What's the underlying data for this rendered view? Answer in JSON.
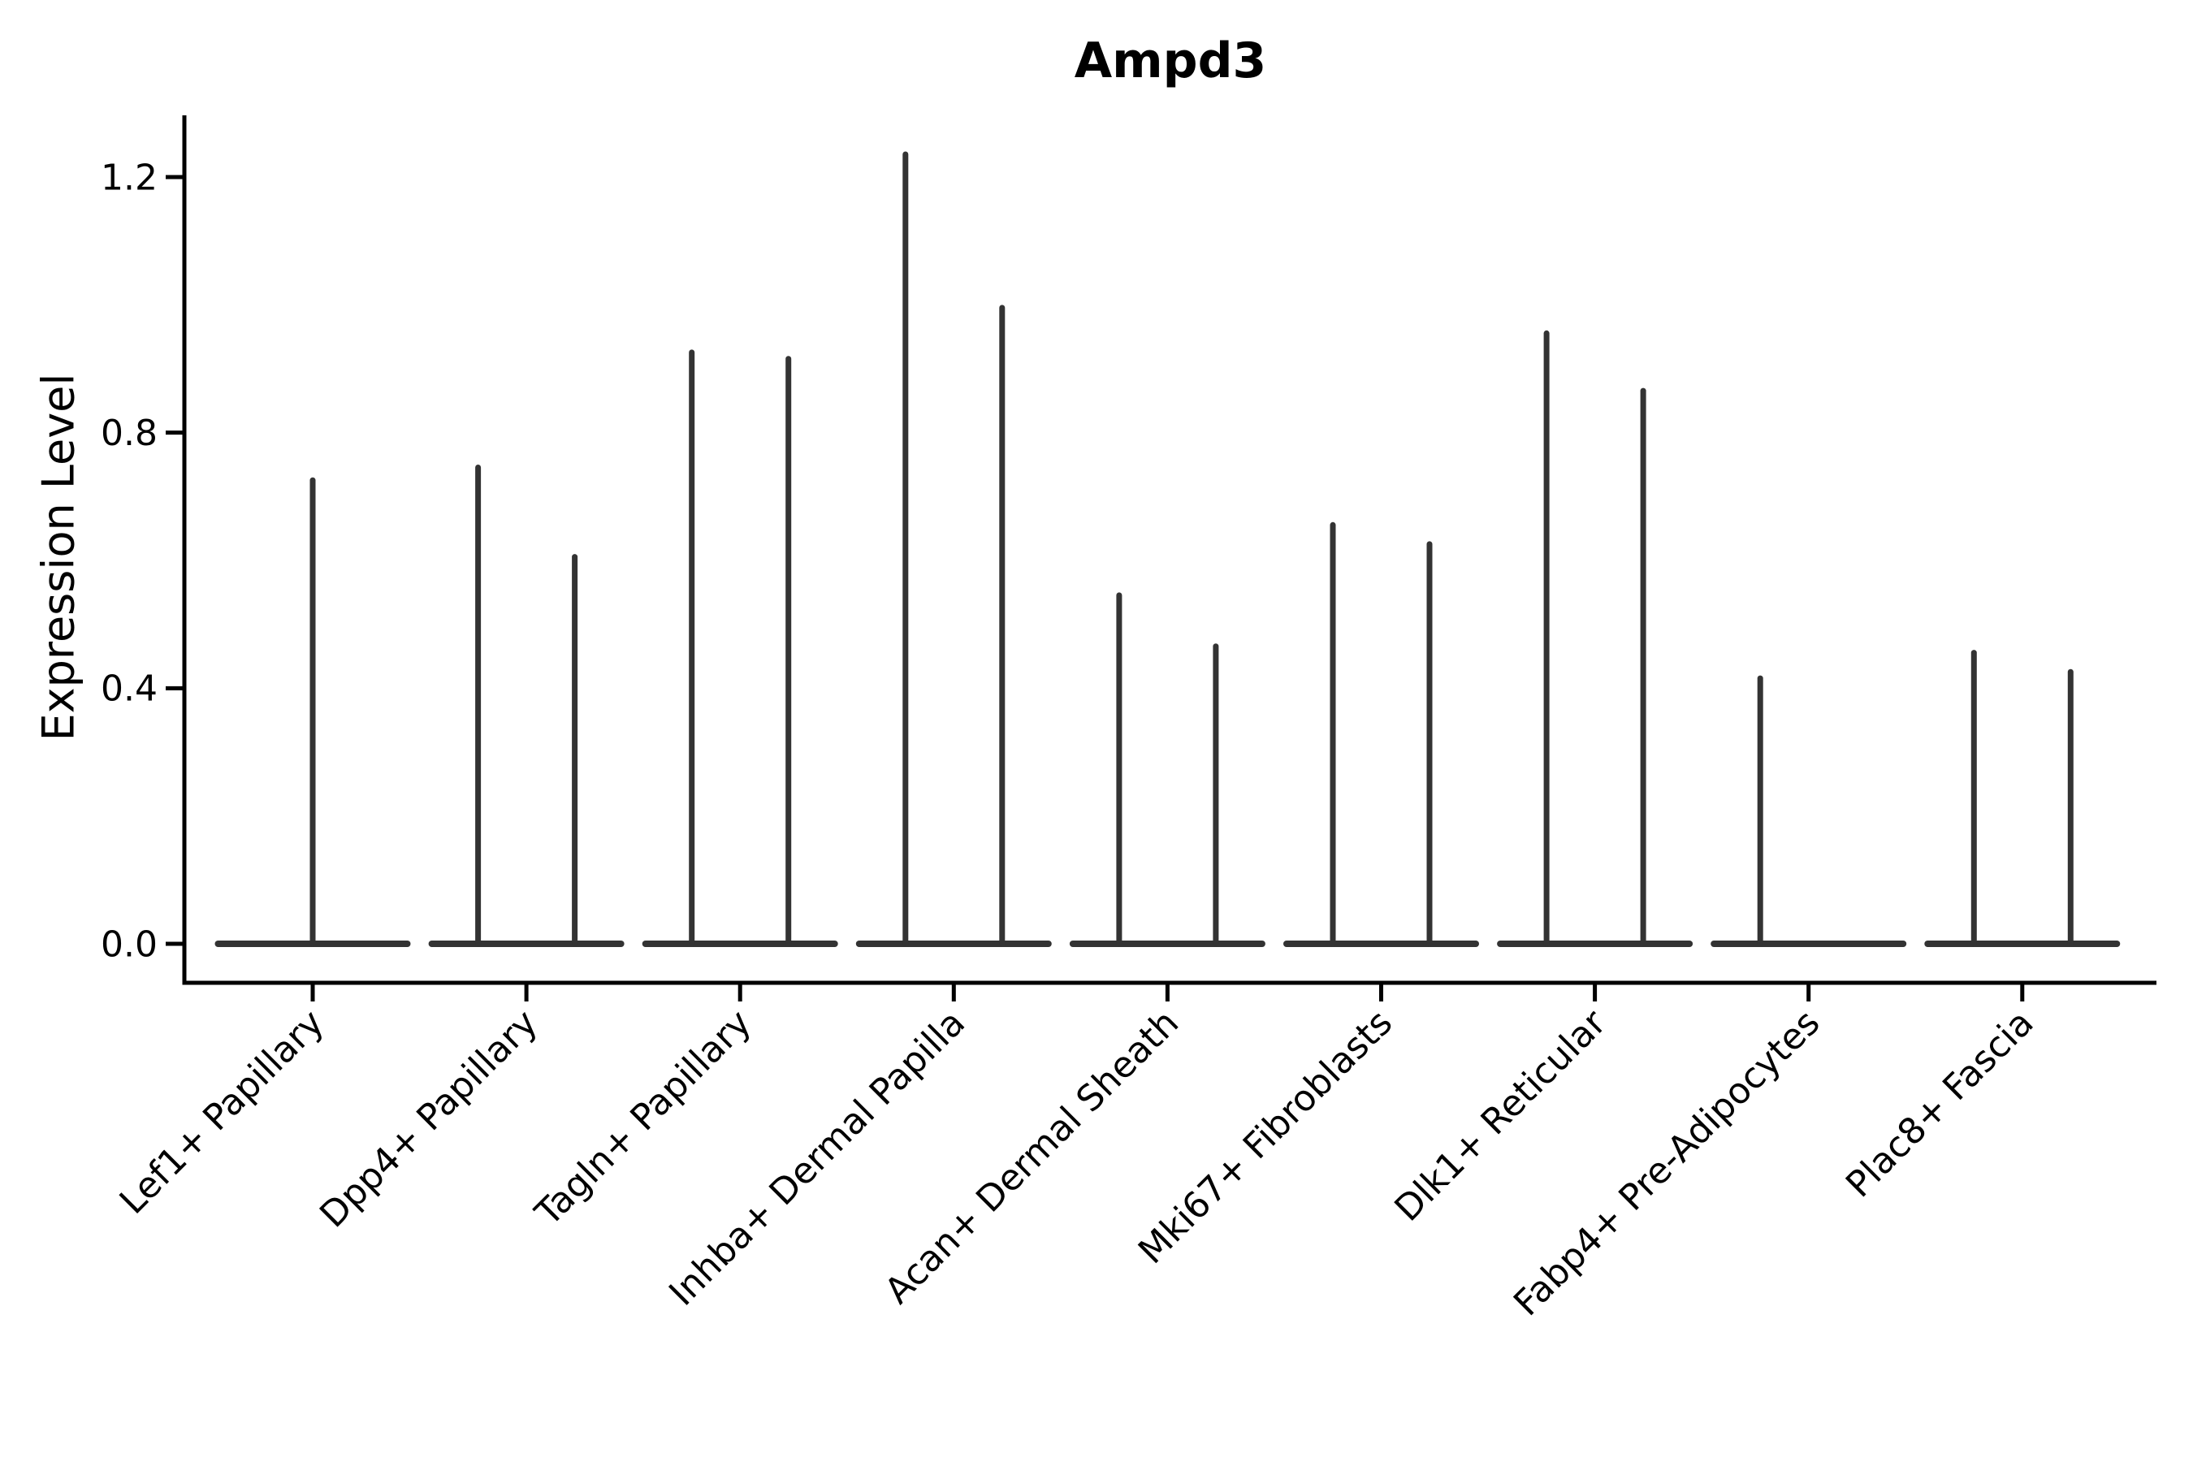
{
  "chart_data": {
    "type": "violin",
    "title": "Ampd3",
    "ylabel": "Expression Level",
    "xlabel": "",
    "yticks": [
      "0.0",
      "0.4",
      "0.8",
      "1.2"
    ],
    "ytick_values": [
      0.0,
      0.4,
      0.8,
      1.2
    ],
    "ylim": [
      -0.06,
      1.3
    ],
    "grid": false,
    "legend": "none",
    "violin_color": "#333333",
    "axis_color": "#000000",
    "description": "Violin plot of Ampd3 expression per fibroblast cluster; density is concentrated at 0 (wide flat base) with thin spikes up to each group maximum. Most categories contain two side-by-side sub-violins.",
    "categories": [
      {
        "label": "Lef1+ Papillary",
        "spikes": [
          {
            "side": "center",
            "max": 0.73
          }
        ]
      },
      {
        "label": "Dpp4+ Papillary",
        "spikes": [
          {
            "side": "left",
            "max": 0.75
          },
          {
            "side": "right",
            "max": 0.61
          }
        ]
      },
      {
        "label": "Tagln+ Papillary",
        "spikes": [
          {
            "side": "left",
            "max": 0.93
          },
          {
            "side": "right",
            "max": 0.92
          }
        ]
      },
      {
        "label": "Inhba+ Dermal Papilla",
        "spikes": [
          {
            "side": "left",
            "max": 1.24
          },
          {
            "side": "right",
            "max": 1.0
          }
        ]
      },
      {
        "label": "Acan+ Dermal Sheath",
        "spikes": [
          {
            "side": "left",
            "max": 0.55
          },
          {
            "side": "right",
            "max": 0.47
          }
        ]
      },
      {
        "label": "Mki67+ Fibroblasts",
        "spikes": [
          {
            "side": "left",
            "max": 0.66
          },
          {
            "side": "right",
            "max": 0.63
          }
        ]
      },
      {
        "label": "Dlk1+ Reticular",
        "spikes": [
          {
            "side": "left",
            "max": 0.96
          },
          {
            "side": "right",
            "max": 0.87
          }
        ]
      },
      {
        "label": "Fabp4+ Pre-Adipocytes",
        "spikes": [
          {
            "side": "left",
            "max": 0.42
          }
        ]
      },
      {
        "label": "Plac8+ Fascia",
        "spikes": [
          {
            "side": "left",
            "max": 0.46
          },
          {
            "side": "right",
            "max": 0.43
          }
        ]
      }
    ]
  }
}
